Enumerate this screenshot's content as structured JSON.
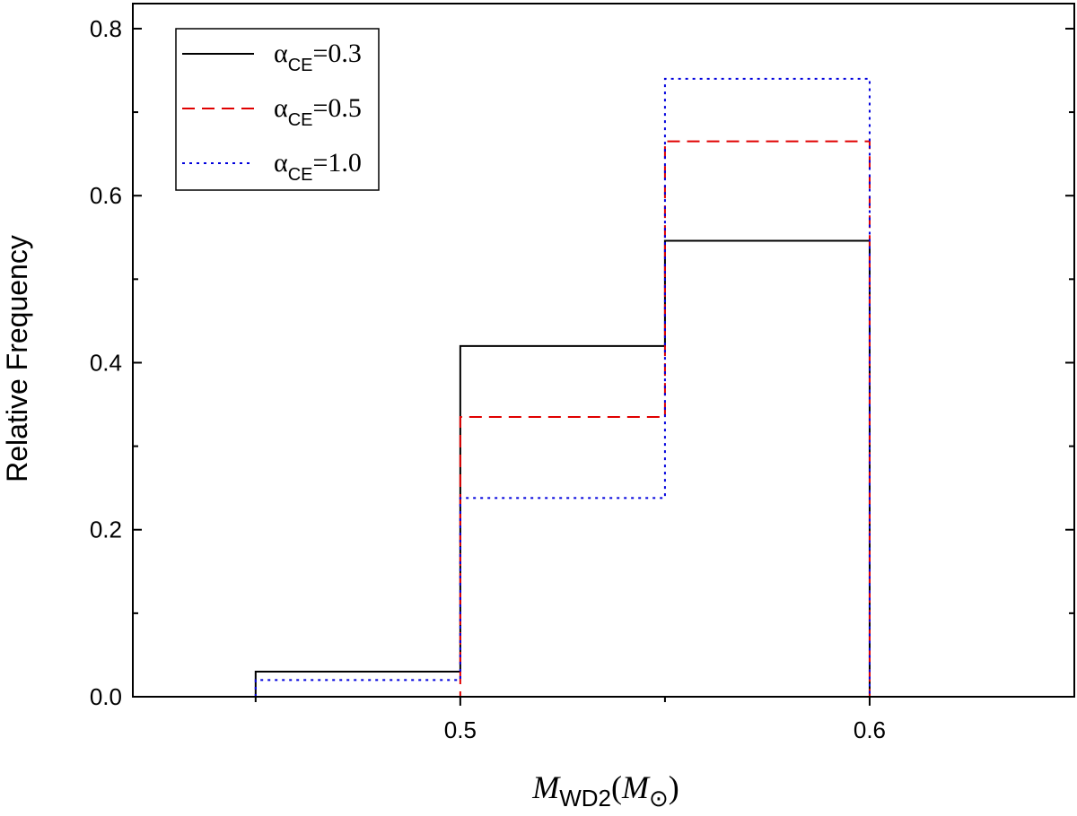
{
  "chart_data": {
    "type": "histogram",
    "xlabel": {
      "symbol": "M",
      "symbol_sub": "WD2",
      "unit_open": "(",
      "unit_symbol": "M",
      "unit_sub": "⊙",
      "unit_close": ")"
    },
    "ylabel": "Relative Frequency",
    "xlim": [
      0.42,
      0.65
    ],
    "ylim": [
      0,
      0.83
    ],
    "x_ticks": [
      {
        "value": 0.5,
        "label": "0.5"
      },
      {
        "value": 0.6,
        "label": "0.6"
      }
    ],
    "x_minor_ticks": [
      0.45,
      0.55
    ],
    "y_ticks": [
      {
        "value": 0.0,
        "label": "0.0"
      },
      {
        "value": 0.2,
        "label": "0.2"
      },
      {
        "value": 0.4,
        "label": "0.4"
      },
      {
        "value": 0.6,
        "label": "0.6"
      },
      {
        "value": 0.8,
        "label": "0.8"
      }
    ],
    "y_minor_ticks": [
      0.1,
      0.3,
      0.5,
      0.7
    ],
    "bin_edges": [
      0.45,
      0.5,
      0.55,
      0.6
    ],
    "series": [
      {
        "name": "α_CE=0.3",
        "label_symbol": "α",
        "label_sub": "CE",
        "label_value": "=0.3",
        "color": "#000000",
        "style": "solid",
        "values": [
          0.03,
          0.42,
          0.546
        ]
      },
      {
        "name": "α_CE=0.5",
        "label_symbol": "α",
        "label_sub": "CE",
        "label_value": "=0.5",
        "color": "#e00000",
        "style": "dashed",
        "values": [
          0.0,
          0.335,
          0.665
        ]
      },
      {
        "name": "α_CE=1.0",
        "label_symbol": "α",
        "label_sub": "CE",
        "label_value": "=1.0",
        "color": "#0000dd",
        "style": "dotted",
        "values": [
          0.02,
          0.238,
          0.74
        ]
      }
    ],
    "legend_position": "top-left",
    "grid": false
  }
}
